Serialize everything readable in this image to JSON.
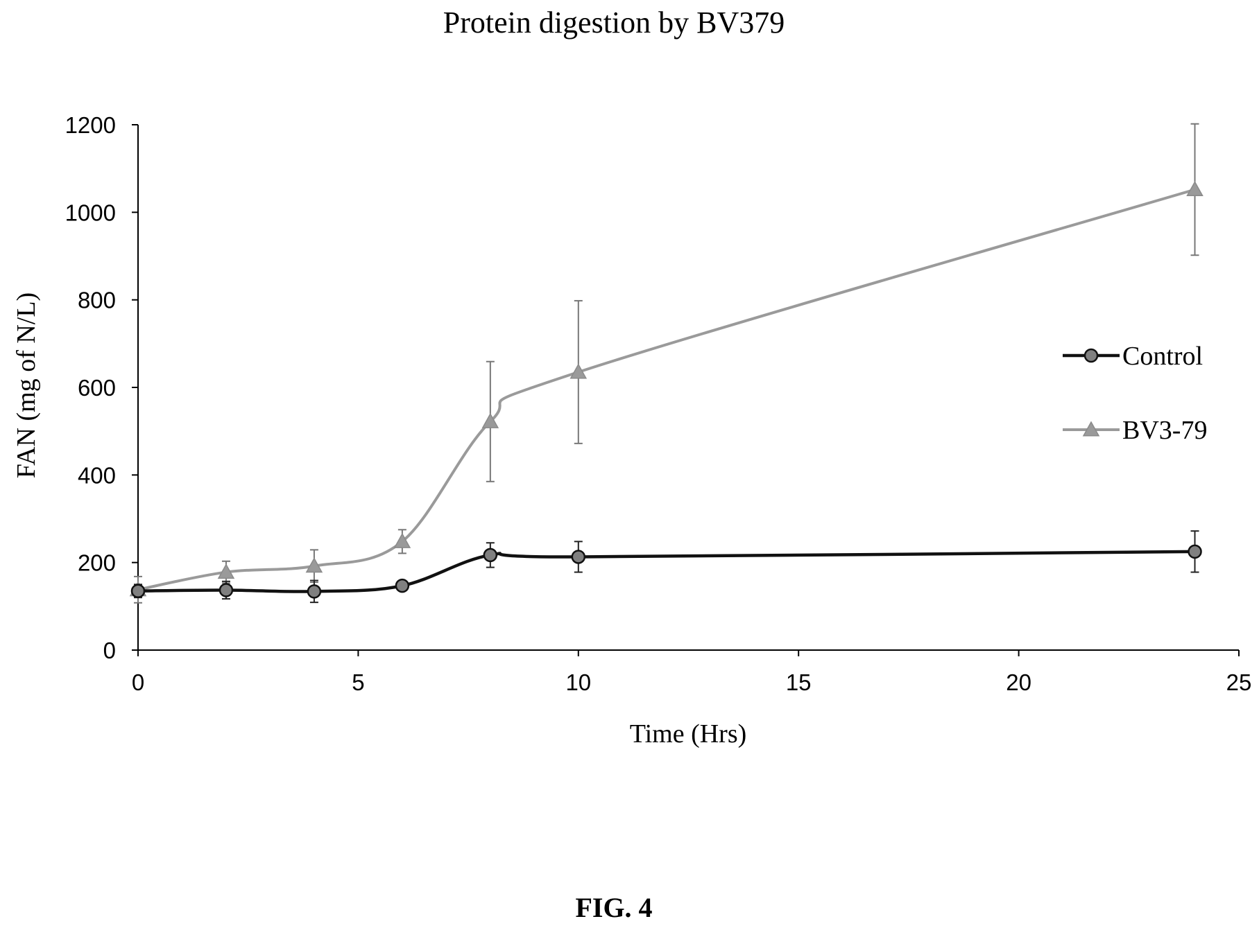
{
  "chart_data": {
    "type": "line",
    "title": "Protein digestion by BV379",
    "xlabel": "Time (Hrs)",
    "ylabel": "FAN (mg of N/L)",
    "xlim": [
      0,
      25
    ],
    "ylim": [
      0,
      1200
    ],
    "xticks": [
      0,
      5,
      10,
      15,
      20,
      25
    ],
    "yticks": [
      0,
      200,
      400,
      600,
      800,
      1000,
      1200
    ],
    "grid": false,
    "legend_position": "right",
    "series": [
      {
        "name": "Control",
        "marker": "circle",
        "color": "#111111",
        "marker_fill": "#808080",
        "x": [
          0,
          2,
          4,
          6,
          8,
          10,
          24
        ],
        "y": [
          135,
          137,
          134,
          147,
          217,
          213,
          225
        ],
        "err": [
          15,
          20,
          25,
          8,
          28,
          35,
          47
        ]
      },
      {
        "name": "BV3-79",
        "marker": "triangle",
        "color": "#9a9a9a",
        "marker_fill": "#9a9a9a",
        "x": [
          0,
          2,
          4,
          6,
          8,
          10,
          24
        ],
        "y": [
          138,
          178,
          192,
          248,
          522,
          635,
          1052
        ],
        "err": [
          30,
          25,
          37,
          27,
          137,
          163,
          150
        ]
      }
    ]
  },
  "caption": "FIG. 4"
}
